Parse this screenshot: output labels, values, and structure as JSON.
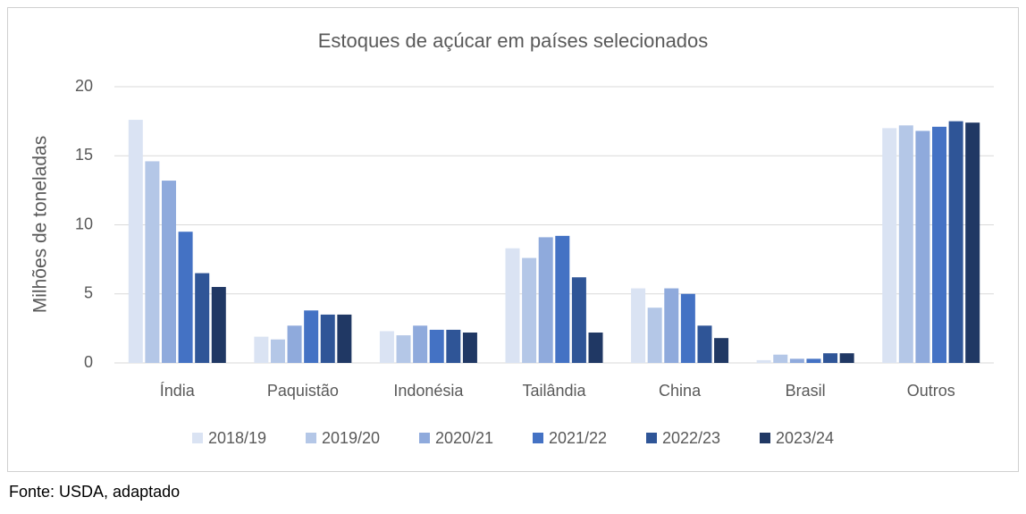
{
  "chart_data": {
    "type": "bar",
    "title": "Estoques de açúcar em países selecionados",
    "y_label": "Milhões de toneladas",
    "categories": [
      "Índia",
      "Paquistão",
      "Indonésia",
      "Tailândia",
      "China",
      "Brasil",
      "Outros"
    ],
    "series": [
      {
        "name": "2018/19",
        "color": "#dae3f3",
        "values": [
          17.6,
          1.9,
          2.3,
          8.3,
          5.4,
          0.2,
          17.0
        ]
      },
      {
        "name": "2019/20",
        "color": "#b4c7e7",
        "values": [
          14.6,
          1.7,
          2.0,
          7.6,
          4.0,
          0.6,
          17.2
        ]
      },
      {
        "name": "2020/21",
        "color": "#8faadc",
        "values": [
          13.2,
          2.7,
          2.7,
          9.1,
          5.4,
          0.3,
          16.8
        ]
      },
      {
        "name": "2021/22",
        "color": "#4472c4",
        "values": [
          9.5,
          3.8,
          2.4,
          9.2,
          5.0,
          0.3,
          17.1
        ]
      },
      {
        "name": "2022/23",
        "color": "#2f5597",
        "values": [
          6.5,
          3.5,
          2.4,
          6.2,
          2.7,
          0.7,
          17.5
        ]
      },
      {
        "name": "2023/24",
        "color": "#203864",
        "values": [
          5.5,
          3.5,
          2.2,
          2.2,
          1.8,
          0.7,
          17.4
        ]
      }
    ],
    "ylim": [
      0,
      20
    ],
    "yticks": [
      0,
      5,
      10,
      15,
      20
    ],
    "grid": true,
    "legend": "bottom"
  },
  "source": "Fonte: USDA, adaptado"
}
